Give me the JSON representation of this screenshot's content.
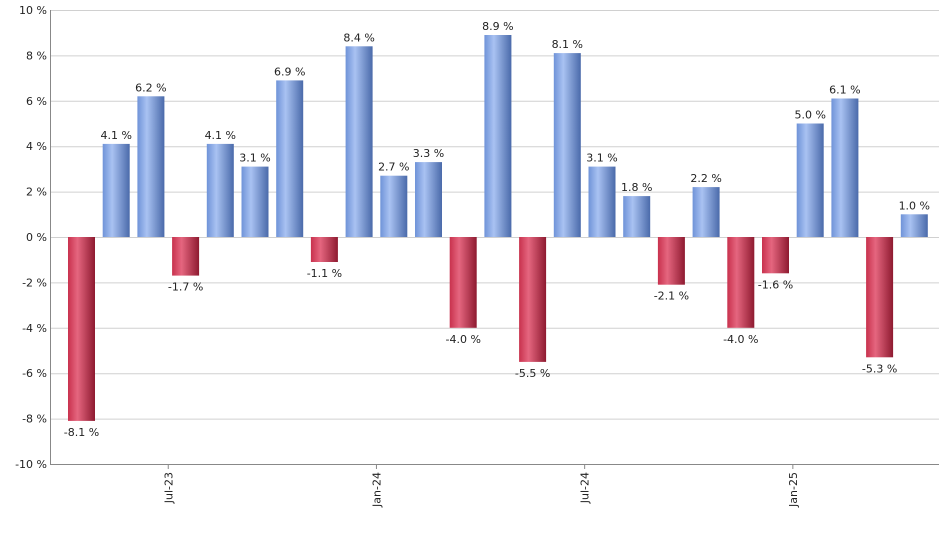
{
  "chart_data": {
    "type": "bar",
    "y_unit_suffix": " %",
    "ylim": [
      -10,
      10
    ],
    "y_ticks": [
      10,
      8,
      6,
      4,
      2,
      0,
      -2,
      -4,
      -6,
      -8,
      -10
    ],
    "y_tick_labels": [
      "10 %",
      "8 %",
      "6 %",
      "4 %",
      "2 %",
      "0 %",
      "-2 %",
      "-4 %",
      "-6 %",
      "-8 %",
      "-10 %"
    ],
    "values": [
      -8.1,
      4.1,
      6.2,
      -1.7,
      4.1,
      3.1,
      6.9,
      -1.1,
      8.4,
      2.7,
      3.3,
      -4.0,
      8.9,
      -5.5,
      8.1,
      3.1,
      1.8,
      -2.1,
      2.2,
      -4.0,
      -1.6,
      5.0,
      6.1,
      -5.3,
      1.0
    ],
    "value_labels": [
      "-8.1 %",
      "4.1 %",
      "6.2 %",
      "-1.7 %",
      "4.1 %",
      "3.1 %",
      "6.9 %",
      "-1.1 %",
      "8.4 %",
      "2.7 %",
      "3.3 %",
      "-4.0 %",
      "8.9 %",
      "-5.5 %",
      "8.1 %",
      "3.1 %",
      "1.8 %",
      "-2.1 %",
      "2.2 %",
      "-4.0 %",
      "-1.6 %",
      "5.0 %",
      "6.1 %",
      "-5.3 %",
      "1.0 %"
    ],
    "x_ticks": [
      {
        "index": 2.5,
        "label": "Jul-23"
      },
      {
        "index": 8.5,
        "label": "Jan-24"
      },
      {
        "index": 14.5,
        "label": "Jul-24"
      },
      {
        "index": 20.5,
        "label": "Jan-25"
      }
    ],
    "grid": true,
    "colors": {
      "positive": "#6f93d8",
      "positive_light": "#a9c2f2",
      "positive_dark": "#4a6aaa",
      "negative": "#c8314d",
      "negative_light": "#e5667f",
      "negative_dark": "#8e1a30"
    }
  }
}
